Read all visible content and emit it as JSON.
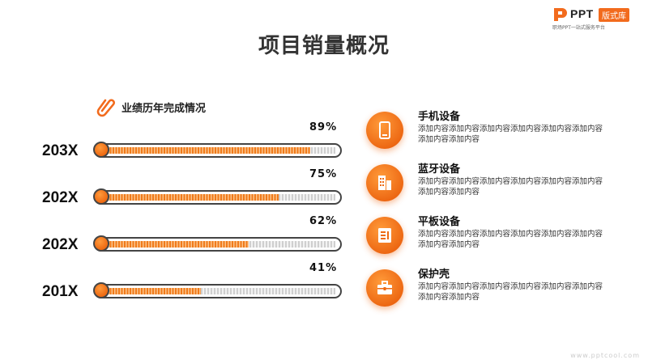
{
  "logo": {
    "brand": "PPT",
    "badge": "版式库",
    "slogan": "职场PPT一站式服务平台"
  },
  "title": "项目销量概况",
  "subheading": "业绩历年完成情况",
  "bars": [
    {
      "year": "203X",
      "percent_label": "89%",
      "percent": 0.89
    },
    {
      "year": "202X",
      "percent_label": "75%",
      "percent": 0.75
    },
    {
      "year": "202X",
      "percent_label": "62%",
      "percent": 0.62
    },
    {
      "year": "201X",
      "percent_label": "41%",
      "percent": 0.41
    }
  ],
  "items": [
    {
      "title": "手机设备",
      "desc": "添加内容添加内容添加内容添加内容添加内容添加内容添加内容添加内容",
      "icon": "phone-icon"
    },
    {
      "title": "蓝牙设备",
      "desc": "添加内容添加内容添加内容添加内容添加内容添加内容添加内容添加内容",
      "icon": "building-icon"
    },
    {
      "title": "平板设备",
      "desc": "添加内容添加内容添加内容添加内容添加内容添加内容添加内容添加内容",
      "icon": "tablet-icon"
    },
    {
      "title": "保护壳",
      "desc": "添加内容添加内容添加内容添加内容添加内容添加内容添加内容添加内容",
      "icon": "briefcase-icon"
    }
  ],
  "watermark": "www.pptcool.com",
  "colors": {
    "accent": "#f26b1d",
    "text": "#222222",
    "track_border": "#444444"
  }
}
